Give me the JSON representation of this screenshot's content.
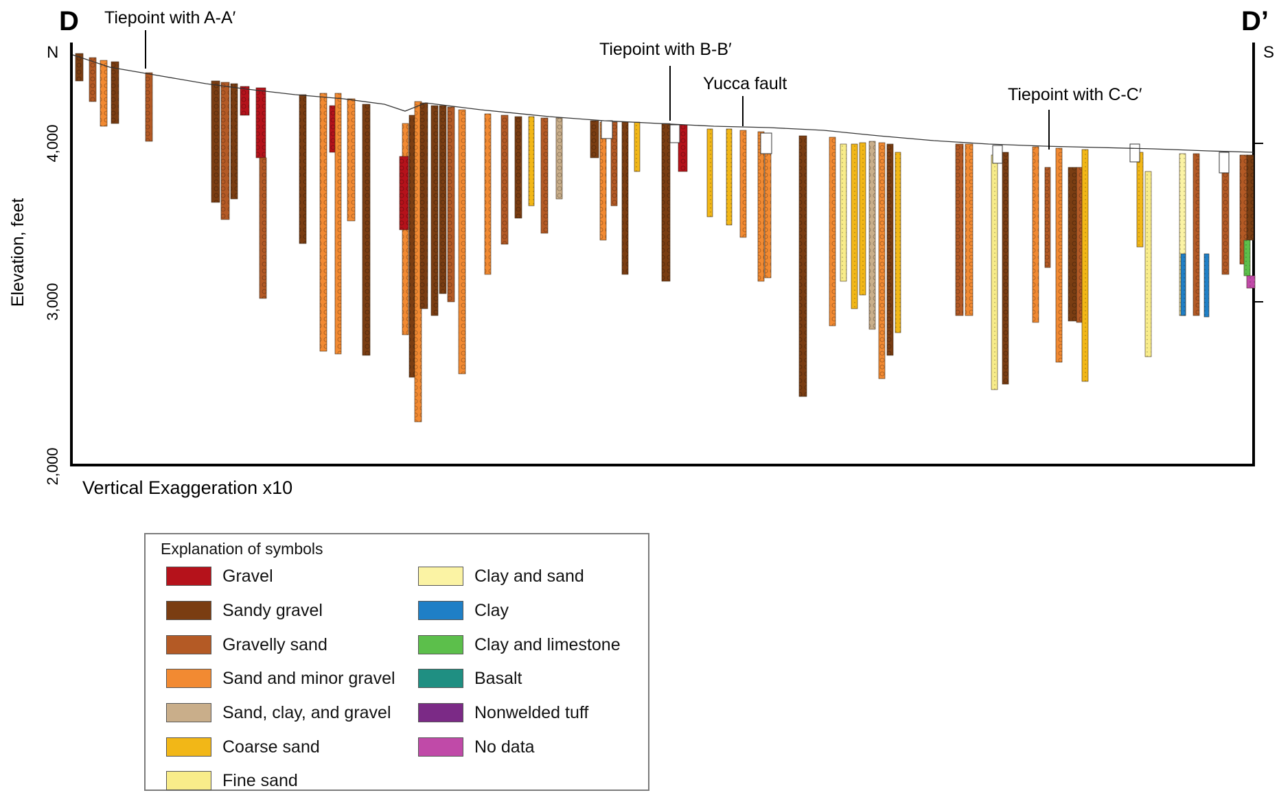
{
  "section": {
    "left_label": "D",
    "right_label": "D’",
    "north_label": "N",
    "south_label": "S",
    "y_axis_title": "Elevation, feet",
    "y_ticks": [
      "2,000",
      "3,000",
      "4,000"
    ],
    "vertical_exaggeration": "Vertical Exaggeration x10",
    "annotations": [
      "Tiepoint with A-A′",
      "Tiepoint with B-B′",
      "Yucca fault",
      "Tiepoint with C-C′"
    ]
  },
  "colors": {
    "gravel": "#b5121b",
    "sandy_gravel": "#7a3d12",
    "gravelly_sand": "#b45a25",
    "sand_minor_gravel": "#f28a32",
    "sand_clay_gravel": "#c9ae8a",
    "coarse_sand": "#f2b717",
    "fine_sand": "#f8ec8a",
    "clay_and_sand": "#fbf3a4",
    "clay": "#1f7fc6",
    "clay_limestone": "#5cbf4b",
    "basalt": "#1f8f82",
    "nonwelded_tuff": "#7b2a86",
    "no_data": "#c04aa8"
  },
  "legend": {
    "title": "Explanation of symbols",
    "items": [
      {
        "label": "Gravel",
        "color": "#b5121b"
      },
      {
        "label": "Sandy gravel",
        "color": "#7a3d12"
      },
      {
        "label": "Gravelly sand",
        "color": "#b45a25"
      },
      {
        "label": "Sand and minor gravel",
        "color": "#f28a32"
      },
      {
        "label": "Sand, clay, and gravel",
        "color": "#c9ae8a"
      },
      {
        "label": "Coarse sand",
        "color": "#f2b717"
      },
      {
        "label": "Fine sand",
        "color": "#f8ec8a"
      },
      {
        "label": "Clay and sand",
        "color": "#fbf3a4"
      },
      {
        "label": "Clay",
        "color": "#1f7fc6"
      },
      {
        "label": "Clay and limestone",
        "color": "#5cbf4b"
      },
      {
        "label": "Basalt",
        "color": "#1f8f82"
      },
      {
        "label": "Nonwelded tuff",
        "color": "#7b2a86"
      },
      {
        "label": "No data",
        "color": "#c04aa8"
      }
    ]
  }
}
